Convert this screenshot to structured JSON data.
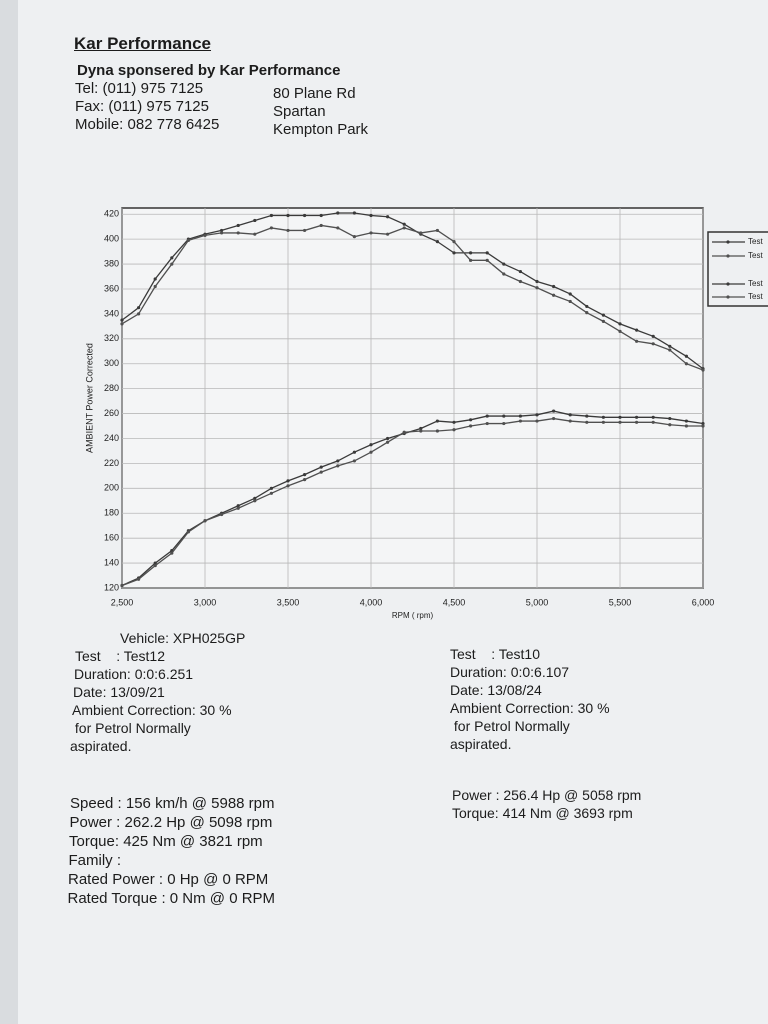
{
  "header": {
    "company": "Kar Performance",
    "subtitle": "Dyna sponsered by Kar Performance",
    "contact": [
      "Tel: (011) 975 7125",
      "Fax: (011) 975 7125",
      "Mobile: 082 778 6425"
    ],
    "address": [
      "80 Plane Rd",
      "Spartan",
      "Kempton Park"
    ]
  },
  "chart_data": {
    "type": "line",
    "y_label": "AMBIENT Power Corrected",
    "x_label": "RPM ( rpm)",
    "xlim": [
      2500,
      6000
    ],
    "ylim": [
      120,
      425
    ],
    "grid": true,
    "legend": "right",
    "xticks": [
      {
        "value": 2500,
        "label": "2,500"
      },
      {
        "value": 3000,
        "label": "3,000"
      },
      {
        "value": 3500,
        "label": "3,500"
      },
      {
        "value": 4000,
        "label": "4,000"
      },
      {
        "value": 4500,
        "label": "4,500"
      },
      {
        "value": 5000,
        "label": "5,000"
      },
      {
        "value": 5500,
        "label": "5,500"
      },
      {
        "value": 6000,
        "label": "6,000"
      }
    ],
    "yticks": [
      120,
      140,
      160,
      180,
      200,
      220,
      240,
      260,
      280,
      300,
      320,
      340,
      360,
      380,
      400,
      420
    ],
    "x": [
      2500,
      2600,
      2700,
      2800,
      2900,
      3000,
      3100,
      3200,
      3300,
      3400,
      3500,
      3600,
      3700,
      3800,
      3900,
      4000,
      4100,
      4200,
      4300,
      4400,
      4500,
      4600,
      4700,
      4800,
      4900,
      5000,
      5100,
      5200,
      5300,
      5400,
      5500,
      5600,
      5700,
      5800,
      5900,
      6000
    ],
    "series": [
      {
        "name": "Test",
        "color": "#3a3a3a",
        "values": [
          335,
          345,
          368,
          385,
          400,
          404,
          407,
          411,
          415,
          419,
          419,
          419,
          419,
          421,
          421,
          419,
          418,
          412,
          404,
          398,
          389,
          389,
          389,
          380,
          374,
          366,
          362,
          356,
          346,
          339,
          332,
          327,
          322,
          314,
          306,
          296
        ]
      },
      {
        "name": "Test",
        "color": "#505050",
        "values": [
          332,
          340,
          362,
          380,
          399,
          403,
          405,
          405,
          404,
          409,
          407,
          407,
          411,
          409,
          402,
          405,
          404,
          409,
          405,
          407,
          398,
          383,
          383,
          372,
          366,
          361,
          355,
          350,
          341,
          334,
          326,
          318,
          316,
          311,
          300,
          295
        ]
      },
      {
        "name": "Test",
        "color": "#3a3a3a",
        "values": [
          122,
          128,
          140,
          150,
          166,
          174,
          180,
          186,
          192,
          200,
          206,
          211,
          217,
          222,
          229,
          235,
          240,
          244,
          248,
          254,
          253,
          255,
          258,
          258,
          258,
          259,
          262,
          259,
          258,
          257,
          257,
          257,
          257,
          256,
          254,
          252
        ]
      },
      {
        "name": "Test",
        "color": "#505050",
        "values": [
          122,
          127,
          138,
          148,
          165,
          174,
          179,
          184,
          190,
          196,
          202,
          207,
          213,
          218,
          222,
          229,
          237,
          245,
          246,
          246,
          247,
          250,
          252,
          252,
          254,
          254,
          256,
          254,
          253,
          253,
          253,
          253,
          253,
          251,
          250,
          250
        ]
      }
    ]
  },
  "left_info": [
    "Vehicle: XPH025GP",
    "Test    : Test12",
    "Duration: 0:0:6.251",
    "Date: 13/09/21",
    "Ambient Correction: 30 %",
    " for Petrol Normally",
    "aspirated."
  ],
  "right_info": [
    "Test    : Test10",
    "Duration: 0:0:6.107",
    "Date: 13/08/24",
    "Ambient Correction: 30 %",
    " for Petrol Normally",
    "aspirated."
  ],
  "left_stats": [
    "Speed : 156 km/h @ 5988 rpm",
    "Power : 262.2 Hp @ 5098 rpm",
    "Torque: 425 Nm @ 3821 rpm",
    "Family :",
    "Rated Power : 0 Hp @ 0 RPM",
    "Rated Torque : 0 Nm @ 0 RPM"
  ],
  "right_stats": [
    "Power : 256.4 Hp @ 5058 rpm",
    "Torque: 414 Nm @ 3693 rpm"
  ]
}
